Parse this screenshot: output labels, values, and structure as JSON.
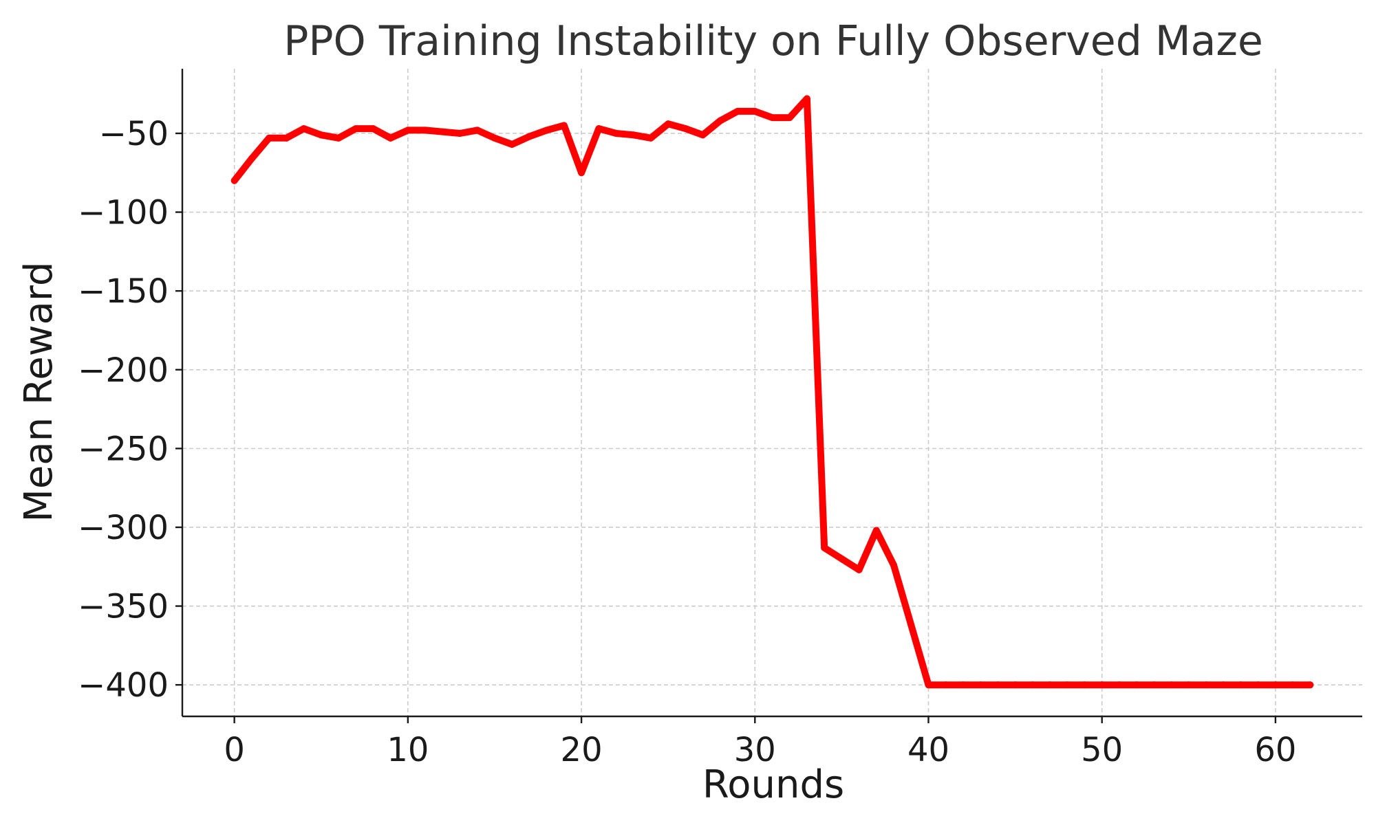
{
  "chart_data": {
    "type": "line",
    "title": "PPO Training Instability on Fully Observed Maze",
    "xlabel": "Rounds",
    "ylabel": "Mean Reward",
    "xlim": [
      -3,
      65
    ],
    "ylim": [
      -420,
      -9
    ],
    "xticks": [
      0,
      10,
      20,
      30,
      40,
      50,
      60
    ],
    "yticks": [
      -50,
      -100,
      -150,
      -200,
      -250,
      -300,
      -350,
      -400
    ],
    "xtick_labels": [
      "0",
      "10",
      "20",
      "30",
      "40",
      "50",
      "60"
    ],
    "ytick_labels": [
      "−50",
      "−100",
      "−150",
      "−200",
      "−250",
      "−300",
      "−350",
      "−400"
    ],
    "grid": true,
    "series": [
      {
        "color": "#ff0000",
        "x": [
          0,
          1,
          2,
          3,
          4,
          5,
          6,
          7,
          8,
          9,
          10,
          11,
          12,
          13,
          14,
          15,
          16,
          17,
          18,
          19,
          20,
          21,
          22,
          23,
          24,
          25,
          26,
          27,
          28,
          29,
          30,
          31,
          32,
          33,
          34,
          35,
          36,
          37,
          38,
          39,
          40,
          41,
          42,
          43,
          44,
          45,
          46,
          47,
          48,
          49,
          50,
          51,
          52,
          53,
          54,
          55,
          56,
          57,
          58,
          59,
          60,
          61,
          62
        ],
        "y": [
          -80,
          -66,
          -53,
          -53,
          -47,
          -51,
          -53,
          -47,
          -47,
          -53,
          -48,
          -48,
          -49,
          -50,
          -48,
          -53,
          -57,
          -52,
          -48,
          -45,
          -75,
          -47,
          -50,
          -51,
          -53,
          -44,
          -47,
          -51,
          -42,
          -36,
          -36,
          -40,
          -40,
          -28,
          -313,
          -320,
          -327,
          -302,
          -324,
          -362,
          -400,
          -400,
          -400,
          -400,
          -400,
          -400,
          -400,
          -400,
          -400,
          -400,
          -400,
          -400,
          -400,
          -400,
          -400,
          -400,
          -400,
          -400,
          -400,
          -400,
          -400,
          -400,
          -400
        ]
      }
    ]
  }
}
